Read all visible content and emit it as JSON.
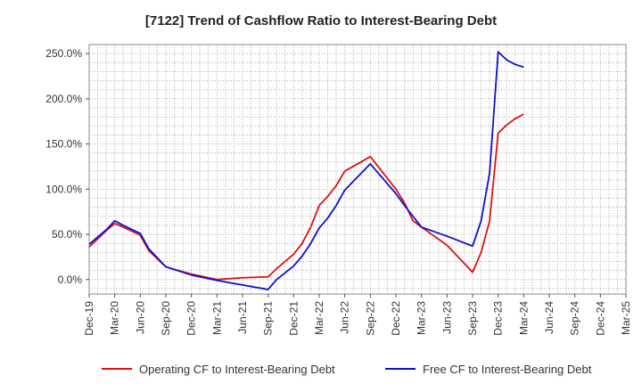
{
  "chart_data": {
    "type": "line",
    "title": "[7122]  Trend of Cashflow Ratio to Interest-Bearing Debt",
    "xlabel": "",
    "ylabel": "",
    "x_ticks": [
      "Dec-19",
      "Mar-20",
      "Jun-20",
      "Sep-20",
      "Dec-20",
      "Mar-21",
      "Jun-21",
      "Sep-21",
      "Dec-21",
      "Mar-22",
      "Jun-22",
      "Sep-22",
      "Dec-22",
      "Mar-23",
      "Jun-23",
      "Sep-23",
      "Dec-23",
      "Mar-24",
      "Jun-24",
      "Sep-24",
      "Dec-24",
      "Mar-25"
    ],
    "y_ticks": [
      "0.0%",
      "50.0%",
      "100.0%",
      "150.0%",
      "200.0%",
      "250.0%"
    ],
    "y_tick_values": [
      0,
      50,
      100,
      150,
      200,
      250
    ],
    "ylim": [
      -16,
      260
    ],
    "grid": true,
    "legend_position": "bottom",
    "series": [
      {
        "name": "Operating CF to Interest-Bearing Debt",
        "color": "#dd1111",
        "points": [
          [
            "Dec-19",
            36
          ],
          [
            "Jan-20",
            45
          ],
          [
            "Feb-20",
            54
          ],
          [
            "Mar-20",
            62
          ],
          [
            "Apr-20",
            58
          ],
          [
            "Jun-20",
            49
          ],
          [
            "Jul-20",
            32
          ],
          [
            "Sep-20",
            14
          ],
          [
            "Dec-20",
            6
          ],
          [
            "Mar-21",
            0
          ],
          [
            "Jun-21",
            2
          ],
          [
            "Sep-21",
            3
          ],
          [
            "Oct-21",
            12
          ],
          [
            "Dec-21",
            28
          ],
          [
            "Jan-22",
            40
          ],
          [
            "Feb-22",
            58
          ],
          [
            "Mar-22",
            82
          ],
          [
            "Apr-22",
            92
          ],
          [
            "May-22",
            104
          ],
          [
            "Jun-22",
            120
          ],
          [
            "Sep-22",
            136
          ],
          [
            "Dec-22",
            100
          ],
          [
            "Jan-23",
            85
          ],
          [
            "Feb-23",
            65
          ],
          [
            "Mar-23",
            58
          ],
          [
            "Jun-23",
            38
          ],
          [
            "Sep-23",
            8
          ],
          [
            "Oct-23",
            30
          ],
          [
            "Nov-23",
            65
          ],
          [
            "Dec-23",
            162
          ],
          [
            "Jan-24",
            171
          ],
          [
            "Feb-24",
            178
          ],
          [
            "Mar-24",
            183
          ]
        ]
      },
      {
        "name": "Free CF to Interest-Bearing Debt",
        "color": "#1111cc",
        "points": [
          [
            "Dec-19",
            39
          ],
          [
            "Jan-20",
            47
          ],
          [
            "Feb-20",
            55
          ],
          [
            "Mar-20",
            65
          ],
          [
            "Apr-20",
            60
          ],
          [
            "Jun-20",
            51
          ],
          [
            "Jul-20",
            34
          ],
          [
            "Sep-20",
            14
          ],
          [
            "Dec-20",
            5
          ],
          [
            "Mar-21",
            -1
          ],
          [
            "Jun-21",
            -6
          ],
          [
            "Sep-21",
            -11
          ],
          [
            "Oct-21",
            0
          ],
          [
            "Dec-21",
            15
          ],
          [
            "Jan-22",
            26
          ],
          [
            "Feb-22",
            40
          ],
          [
            "Mar-22",
            57
          ],
          [
            "Apr-22",
            68
          ],
          [
            "May-22",
            82
          ],
          [
            "Jun-22",
            99
          ],
          [
            "Sep-22",
            128
          ],
          [
            "Dec-22",
            95
          ],
          [
            "Jan-23",
            82
          ],
          [
            "Feb-23",
            70
          ],
          [
            "Mar-23",
            58
          ],
          [
            "Jun-23",
            48
          ],
          [
            "Sep-23",
            37
          ],
          [
            "Oct-23",
            65
          ],
          [
            "Nov-23",
            118
          ],
          [
            "Dec-23",
            252
          ],
          [
            "Jan-24",
            243
          ],
          [
            "Feb-24",
            238
          ],
          [
            "Mar-24",
            235
          ]
        ]
      }
    ]
  }
}
